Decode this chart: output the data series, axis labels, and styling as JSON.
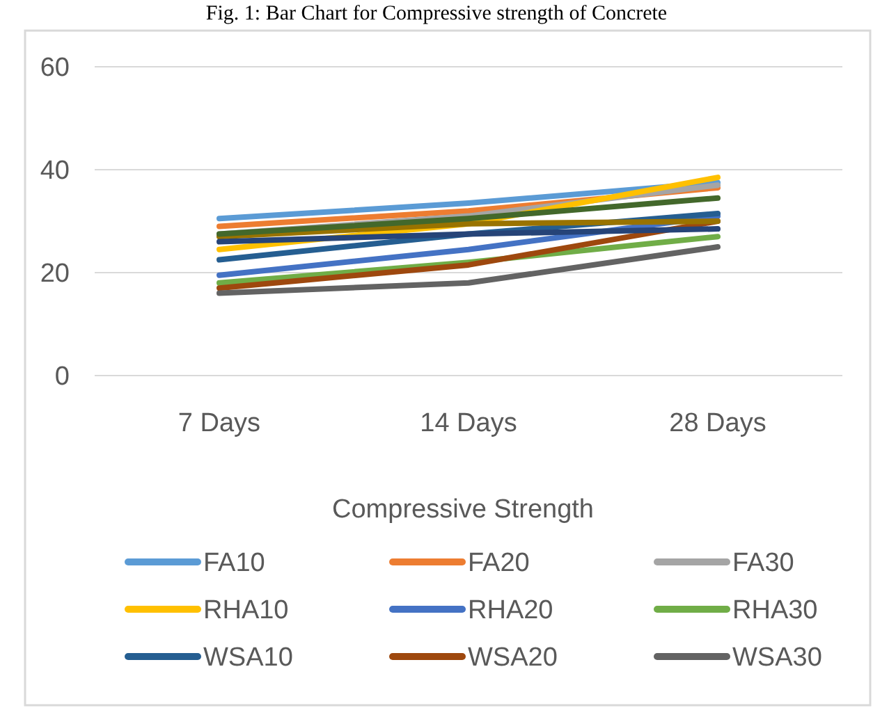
{
  "chart_data": {
    "type": "line",
    "title": "Fig. 1: Bar Chart for Compressive strength of Concrete",
    "xlabel": "Compressive Strength",
    "categories": [
      "7 Days",
      "14 Days",
      "28 Days"
    ],
    "ylim": [
      0,
      60
    ],
    "yticks": [
      0,
      20,
      40,
      60
    ],
    "grid": "y",
    "legend": "bottom",
    "marker": "none",
    "line_style": "solid",
    "series": [
      {
        "name": "FA10",
        "color": "#5b9bd5",
        "values": [
          30.5,
          33.5,
          37.5
        ]
      },
      {
        "name": "FA20",
        "color": "#ed7d31",
        "values": [
          29,
          32,
          36.5
        ]
      },
      {
        "name": "FA30",
        "color": "#a5a5a5",
        "values": [
          27.5,
          31,
          37
        ]
      },
      {
        "name": "RHA10",
        "color": "#ffc000",
        "values": [
          24.5,
          29.5,
          38.5
        ]
      },
      {
        "name": "RHA20",
        "color": "#4472c4",
        "values": [
          19.5,
          24.5,
          31
        ]
      },
      {
        "name": "RHA30",
        "color": "#70ad47",
        "values": [
          18,
          22,
          27
        ]
      },
      {
        "name": "WSA10",
        "color": "#255e91",
        "values": [
          22.5,
          27.5,
          31.5
        ]
      },
      {
        "name": "WSA20",
        "color": "#9e480e",
        "values": [
          17,
          21.5,
          30
        ]
      },
      {
        "name": "WSA30",
        "color": "#636363",
        "values": [
          16,
          18,
          25
        ]
      },
      {
        "color": "#997300",
        "values": [
          27,
          29.5,
          30
        ]
      },
      {
        "color": "#264478",
        "values": [
          26,
          27.5,
          28.5
        ]
      },
      {
        "color": "#43682b",
        "values": [
          27.5,
          30.5,
          34.5
        ]
      }
    ]
  }
}
